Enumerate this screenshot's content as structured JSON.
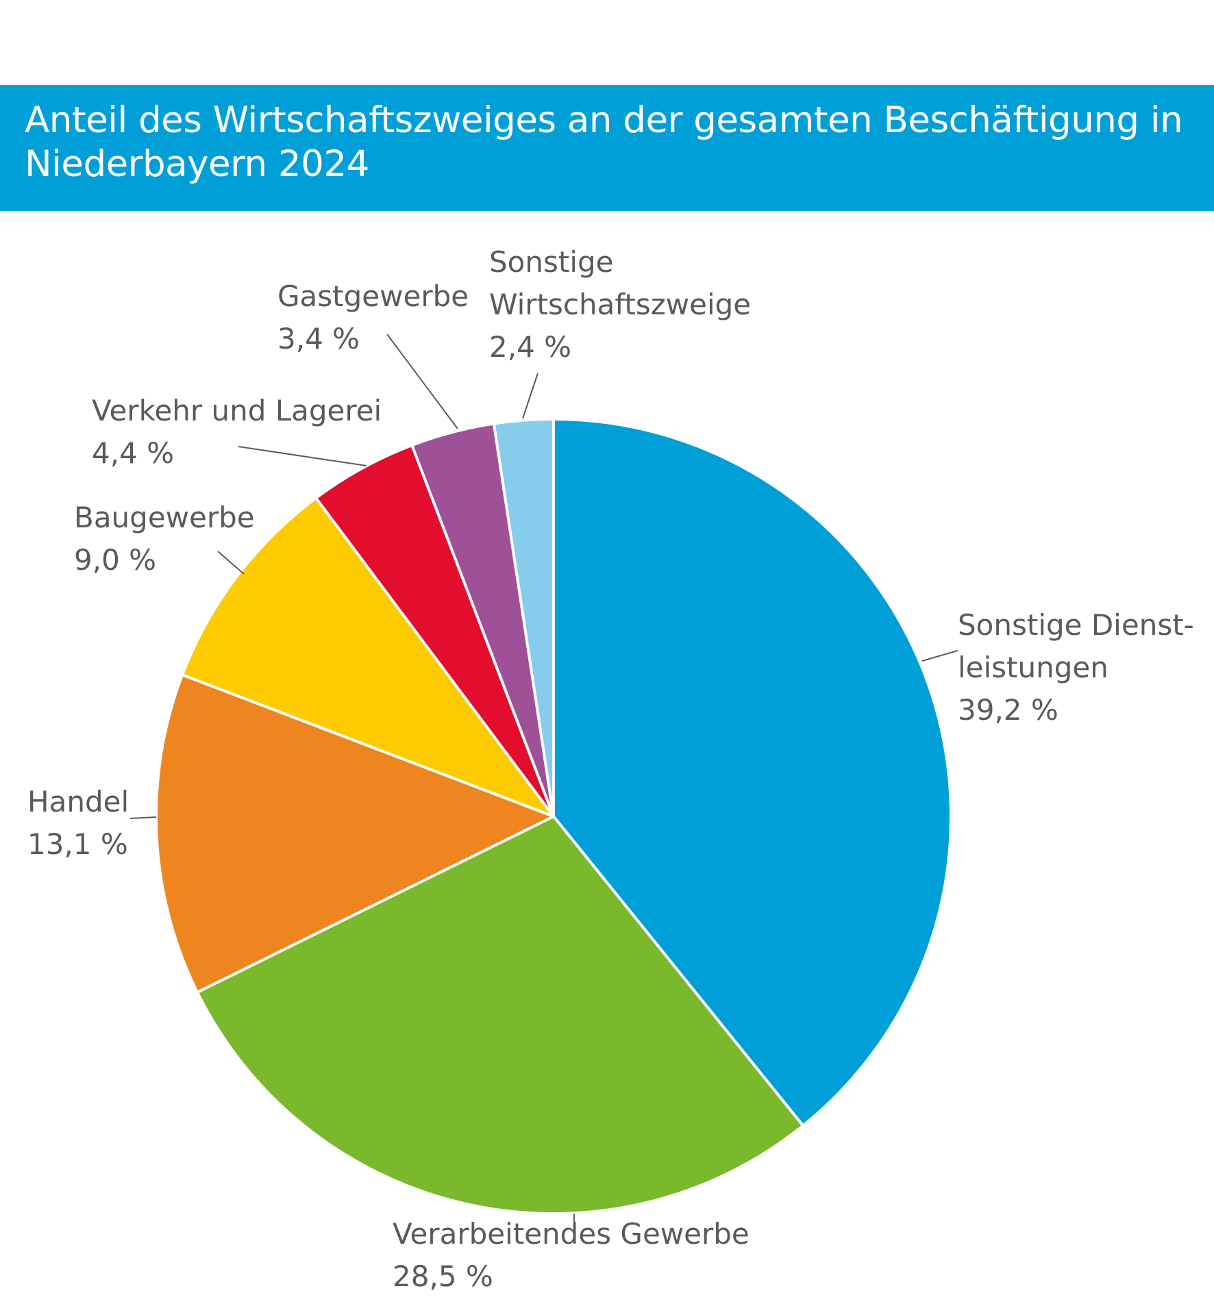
{
  "title": "Anteil des Wirtschaftszweiges an der gesamten Beschäftigung in Niederbayern 2024",
  "chart_data": {
    "type": "pie",
    "title": "Anteil des Wirtschaftszweiges an der gesamten Beschäftigung in Niederbayern 2024",
    "unit": "%",
    "start": "12 o'clock",
    "direction": "clockwise",
    "slices": [
      {
        "label": "Sonstige Dienstleistungen",
        "label_lines": [
          "Sonstige Dienst-",
          "leistungen"
        ],
        "value": 39.2,
        "value_label": "39,2 %",
        "color": "#009fd7"
      },
      {
        "label": "Verarbeitendes Gewerbe",
        "label_lines": [
          "Verarbeitendes Gewerbe"
        ],
        "value": 28.5,
        "value_label": "28,5 %",
        "color": "#7ab82c"
      },
      {
        "label": "Handel",
        "label_lines": [
          "Handel"
        ],
        "value": 13.1,
        "value_label": "13,1 %",
        "color": "#ee851e"
      },
      {
        "label": "Baugewerbe",
        "label_lines": [
          "Baugewerbe"
        ],
        "value": 9.0,
        "value_label": "9,0 %",
        "color": "#fdcb00"
      },
      {
        "label": "Verkehr und Lagerei",
        "label_lines": [
          "Verkehr und Lagerei"
        ],
        "value": 4.4,
        "value_label": "4,4 %",
        "color": "#e30d2e"
      },
      {
        "label": "Gastgewerbe",
        "label_lines": [
          "Gastgewerbe"
        ],
        "value": 3.4,
        "value_label": "3,4 %",
        "color": "#9e5197"
      },
      {
        "label": "Sonstige Wirtschaftszweige",
        "label_lines": [
          "Sonstige",
          "Wirtschaftszweige"
        ],
        "value": 2.4,
        "value_label": "2,4 %",
        "color": "#86cced"
      }
    ]
  }
}
